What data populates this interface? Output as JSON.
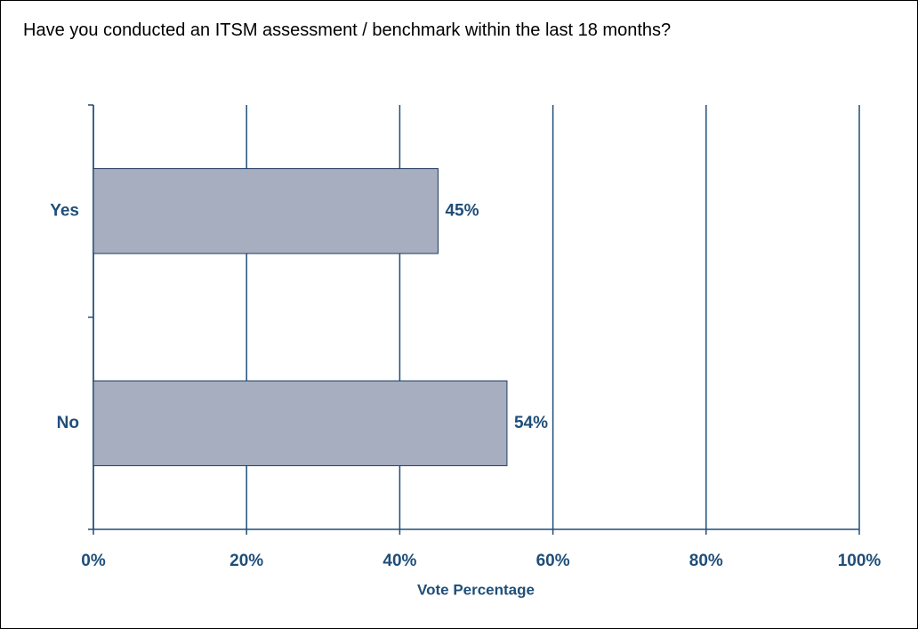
{
  "chart_data": {
    "type": "hbar",
    "title": "Have you conducted an ITSM assessment / benchmark within the last 18 months?",
    "x_label": "Vote Percentage",
    "categories": [
      "Yes",
      "No"
    ],
    "values": [
      45,
      54
    ],
    "value_labels": [
      "45%",
      "54%"
    ],
    "color": "#a6aebf",
    "xlim": [
      0,
      100
    ],
    "xticks": [
      {
        "value": 0,
        "label": "0%"
      },
      {
        "value": 20,
        "label": "20%"
      },
      {
        "value": 40,
        "label": "40%"
      },
      {
        "value": 60,
        "label": "60%"
      },
      {
        "value": 80,
        "label": "80%"
      },
      {
        "value": 100,
        "label": "100%"
      }
    ],
    "grid": true
  }
}
